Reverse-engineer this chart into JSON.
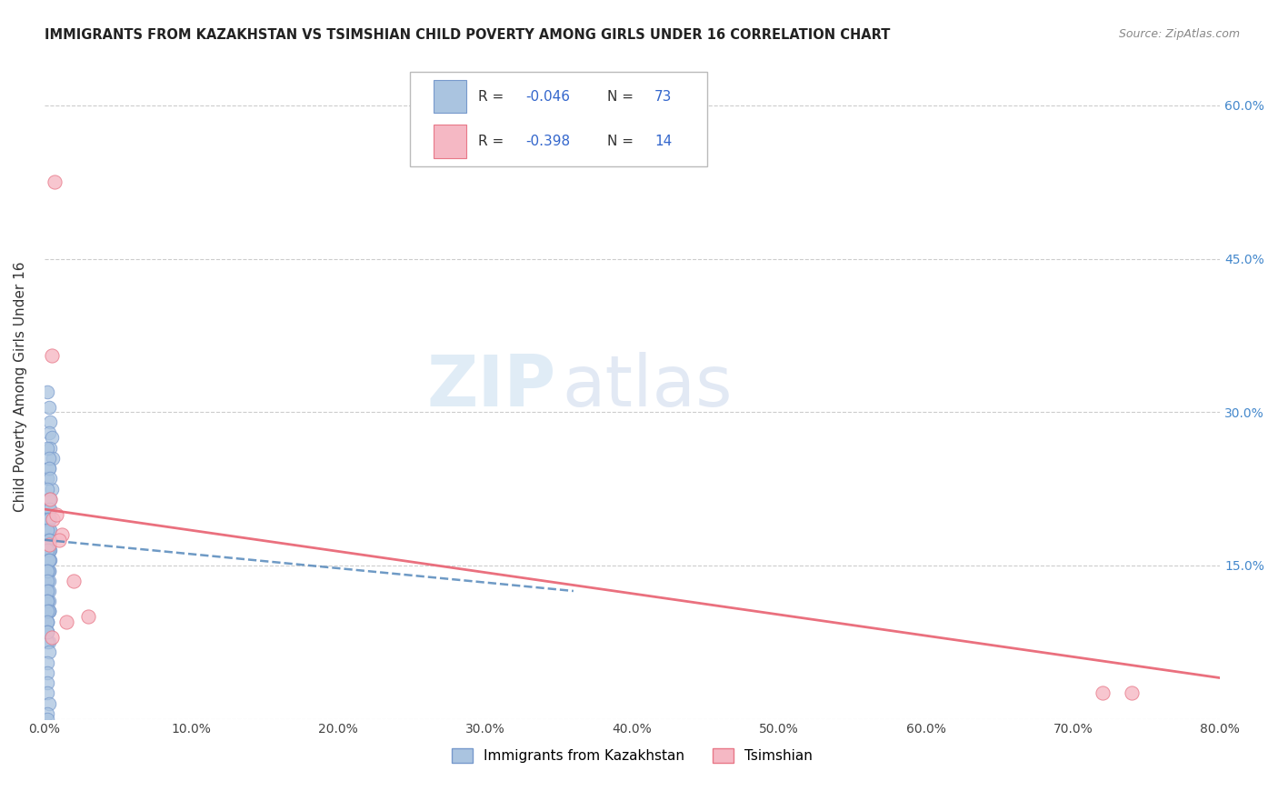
{
  "title": "IMMIGRANTS FROM KAZAKHSTAN VS TSIMSHIAN CHILD POVERTY AMONG GIRLS UNDER 16 CORRELATION CHART",
  "source": "Source: ZipAtlas.com",
  "ylabel": "Child Poverty Among Girls Under 16",
  "R_kaz": -0.046,
  "N_kaz": 73,
  "R_tsim": -0.398,
  "N_tsim": 14,
  "blue_color": "#aac4e0",
  "blue_edge": "#7799cc",
  "pink_color": "#f5b8c4",
  "pink_edge": "#e87888",
  "trendline_blue": "#5588bb",
  "trendline_pink": "#e86070",
  "xlim": [
    0.0,
    0.8
  ],
  "ylim": [
    0.0,
    0.65
  ],
  "xtick_labels": [
    "0.0%",
    "10.0%",
    "20.0%",
    "30.0%",
    "40.0%",
    "50.0%",
    "60.0%",
    "70.0%",
    "80.0%"
  ],
  "ytick_right_labels": [
    "",
    "15.0%",
    "30.0%",
    "45.0%",
    "60.0%"
  ],
  "watermark_zip": "ZIP",
  "watermark_atlas": "atlas",
  "legend_label_kaz": "Immigrants from Kazakhstan",
  "legend_label_tsim": "Tsimshian",
  "tsim_x": [
    0.007,
    0.005,
    0.004,
    0.006,
    0.008,
    0.003,
    0.012,
    0.02,
    0.03,
    0.01,
    0.015,
    0.005,
    0.72,
    0.74
  ],
  "tsim_y": [
    0.525,
    0.355,
    0.215,
    0.195,
    0.2,
    0.17,
    0.18,
    0.135,
    0.1,
    0.175,
    0.095,
    0.08,
    0.025,
    0.025
  ],
  "kaz_x": [
    0.002,
    0.003,
    0.004,
    0.003,
    0.005,
    0.004,
    0.006,
    0.003,
    0.002,
    0.005,
    0.004,
    0.003,
    0.004,
    0.002,
    0.003,
    0.003,
    0.004,
    0.002,
    0.003,
    0.004,
    0.002,
    0.003,
    0.004,
    0.002,
    0.003,
    0.004,
    0.002,
    0.003,
    0.004,
    0.002,
    0.003,
    0.004,
    0.002,
    0.003,
    0.003,
    0.002,
    0.003,
    0.002,
    0.003,
    0.003,
    0.002,
    0.003,
    0.002,
    0.003,
    0.002,
    0.003,
    0.002,
    0.002,
    0.003,
    0.002,
    0.003,
    0.002,
    0.002,
    0.003,
    0.002,
    0.002,
    0.003,
    0.002,
    0.002,
    0.003,
    0.002,
    0.002,
    0.002,
    0.002,
    0.003,
    0.002,
    0.002,
    0.002,
    0.002,
    0.002,
    0.003,
    0.002,
    0.002
  ],
  "kaz_y": [
    0.32,
    0.305,
    0.29,
    0.28,
    0.275,
    0.265,
    0.255,
    0.245,
    0.235,
    0.225,
    0.215,
    0.205,
    0.195,
    0.265,
    0.255,
    0.245,
    0.235,
    0.225,
    0.215,
    0.205,
    0.195,
    0.185,
    0.175,
    0.165,
    0.195,
    0.185,
    0.175,
    0.165,
    0.155,
    0.185,
    0.175,
    0.165,
    0.155,
    0.175,
    0.165,
    0.155,
    0.145,
    0.165,
    0.155,
    0.145,
    0.135,
    0.155,
    0.145,
    0.135,
    0.125,
    0.115,
    0.145,
    0.135,
    0.125,
    0.115,
    0.105,
    0.125,
    0.115,
    0.105,
    0.095,
    0.115,
    0.105,
    0.095,
    0.085,
    0.075,
    0.105,
    0.095,
    0.085,
    0.075,
    0.065,
    0.055,
    0.045,
    0.085,
    0.035,
    0.025,
    0.015,
    0.005,
    0.0
  ]
}
